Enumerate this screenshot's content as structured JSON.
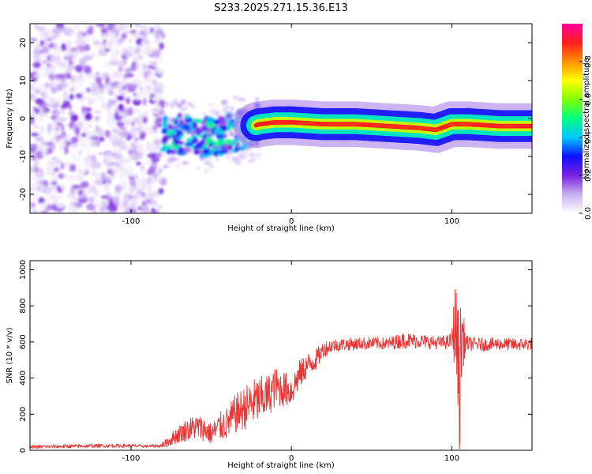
{
  "title": "S233.2025.271.15.36.E13",
  "chart_data": [
    {
      "type": "heatmap",
      "title": "S233.2025.271.15.36.E13",
      "xlabel": "Height of straight line (km)",
      "ylabel": "Frequency (Hz)",
      "xlim": [
        -163,
        150
      ],
      "ylim": [
        -25,
        25
      ],
      "xticks": [
        -100,
        0,
        100
      ],
      "xtick_labels": [
        "-100",
        "0",
        "100"
      ],
      "yticks": [
        -20,
        -10,
        0,
        10,
        20
      ],
      "ytick_labels": [
        "-20",
        "-10",
        "0",
        "10",
        "20"
      ],
      "colorbar": {
        "label": "Normalized spectral amplitude",
        "range": [
          0,
          1
        ],
        "ticks": [
          0.0,
          0.2,
          0.4,
          0.6,
          0.8
        ],
        "tick_labels": [
          "0.0",
          "0.2",
          "0.4",
          "0.6",
          "0.8"
        ],
        "colormap": [
          "#ffffff",
          "#c8b0f0",
          "#7a20e0",
          "#1010ff",
          "#00c8ff",
          "#00ff80",
          "#80ff00",
          "#ffff00",
          "#ff9000",
          "#ff2020",
          "#ff00a0"
        ]
      },
      "ridge": {
        "x": [
          -80,
          -70,
          -60,
          -50,
          -40,
          -30,
          -20,
          -10,
          0,
          20,
          40,
          60,
          80,
          90,
          100,
          110,
          130,
          150
        ],
        "freq": [
          -4,
          -4,
          -5,
          -5,
          -4,
          -3,
          -1.5,
          -1,
          -1,
          -1.5,
          -1.5,
          -2,
          -2.5,
          -3,
          -1.5,
          -1.5,
          -2,
          -2
        ]
      },
      "noise_region_x": [
        -163,
        -80
      ]
    },
    {
      "type": "line",
      "xlabel": "Height of straight line (km)",
      "ylabel": "SNR (10 * v/v)",
      "xlim": [
        -163,
        150
      ],
      "ylim": [
        0,
        1050
      ],
      "xticks": [
        -100,
        0,
        100
      ],
      "xtick_labels": [
        "-100",
        "0",
        "100"
      ],
      "yticks": [
        0,
        200,
        400,
        600,
        800,
        1000
      ],
      "ytick_labels": [
        "0",
        "200",
        "400",
        "600",
        "800",
        "1000"
      ],
      "color": "#ee3333",
      "series": [
        {
          "name": "SNR",
          "x": [
            -163,
            -140,
            -120,
            -100,
            -90,
            -82,
            -78,
            -72,
            -66,
            -60,
            -55,
            -50,
            -45,
            -40,
            -35,
            -30,
            -25,
            -20,
            -15,
            -10,
            -5,
            0,
            5,
            10,
            15,
            20,
            25,
            30,
            40,
            50,
            60,
            70,
            80,
            90,
            98,
            100,
            102,
            104,
            105,
            106,
            108,
            110,
            120,
            130,
            140,
            150
          ],
          "y": [
            18,
            22,
            25,
            25,
            22,
            25,
            40,
            80,
            110,
            130,
            120,
            90,
            130,
            150,
            200,
            230,
            260,
            280,
            300,
            350,
            340,
            330,
            420,
            470,
            500,
            560,
            580,
            585,
            590,
            595,
            590,
            610,
            605,
            595,
            600,
            610,
            700,
            500,
            300,
            650,
            600,
            590,
            585,
            590,
            585,
            590
          ],
          "amplitude": [
            10,
            10,
            10,
            10,
            8,
            10,
            25,
            45,
            60,
            70,
            70,
            60,
            80,
            90,
            110,
            120,
            130,
            130,
            120,
            110,
            100,
            90,
            80,
            70,
            60,
            45,
            40,
            35,
            35,
            35,
            35,
            45,
            40,
            35,
            40,
            50,
            250,
            300,
            420,
            300,
            80,
            40,
            35,
            35,
            35,
            35
          ]
        }
      ]
    }
  ]
}
